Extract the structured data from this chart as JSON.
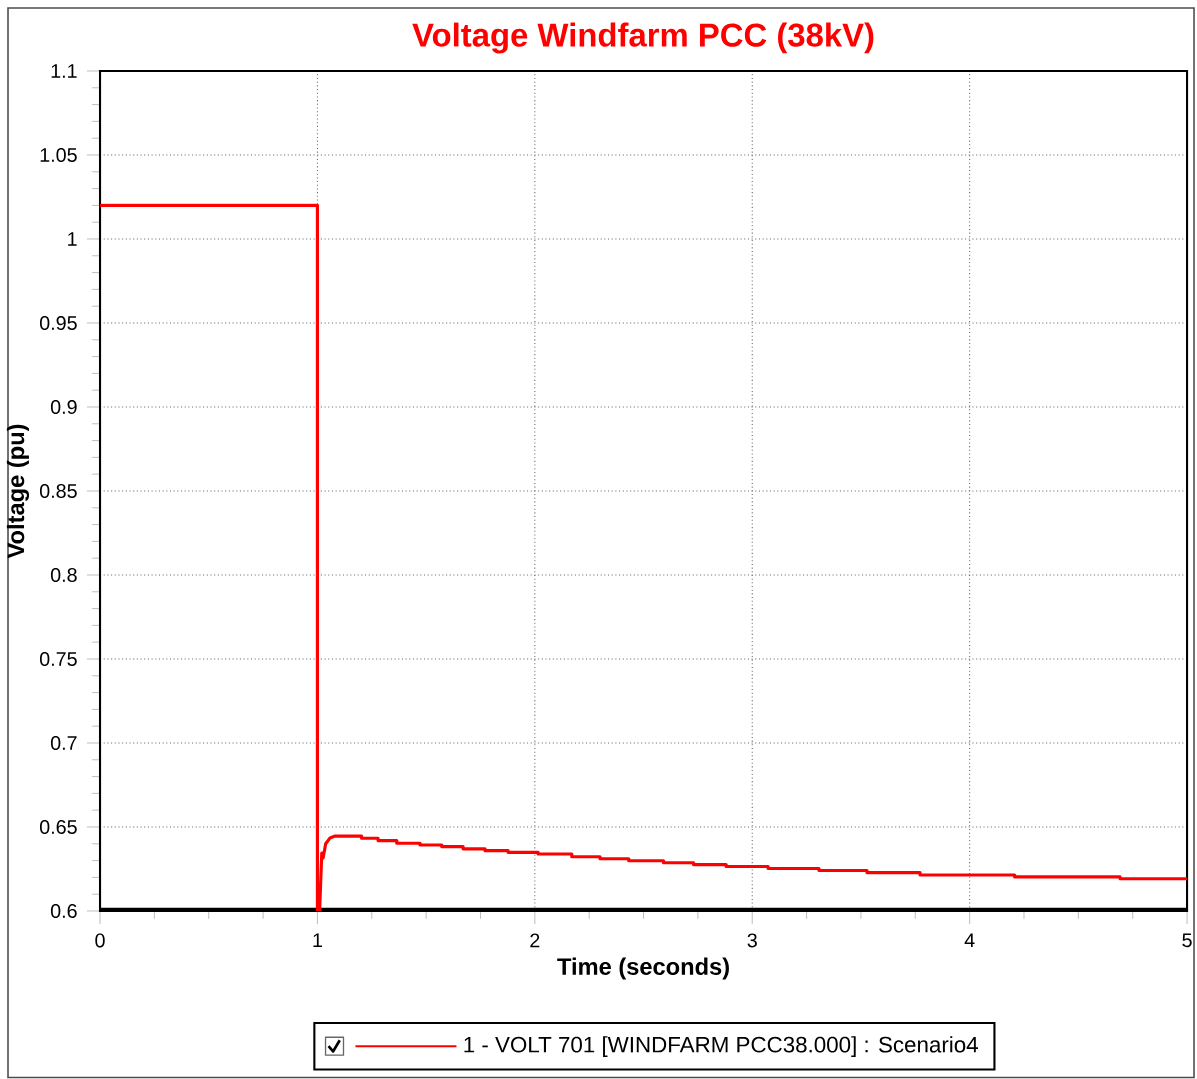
{
  "chart_data": {
    "type": "line",
    "title": "Voltage Windfarm PCC (38kV)",
    "xlabel": "Time (seconds)",
    "ylabel": "Voltage (pu)",
    "xlim": [
      0,
      5
    ],
    "ylim": [
      0.6,
      1.1
    ],
    "xticks": [
      0,
      1,
      2,
      3,
      4,
      5
    ],
    "yticks": [
      0.6,
      0.65,
      0.7,
      0.75,
      0.8,
      0.85,
      0.9,
      0.95,
      1,
      1.05,
      1.1
    ],
    "grid": true,
    "legend": "bottom",
    "marker": "none",
    "line_style": "solid",
    "series": [
      {
        "name": "1 - VOLT    701 [WINDFARM PCC38.000] : Scenario4",
        "color": "#ff0000",
        "x": [
          0,
          1.0,
          1.0,
          1.01,
          1.02,
          1.026,
          1.038,
          1.058,
          1.081,
          1.203,
          1.203,
          1.279,
          1.279,
          1.365,
          1.365,
          1.472,
          1.472,
          1.572,
          1.572,
          1.67,
          1.67,
          1.771,
          1.771,
          1.877,
          1.877,
          2.015,
          2.015,
          2.17,
          2.17,
          2.3,
          2.3,
          2.432,
          2.432,
          2.592,
          2.592,
          2.73,
          2.73,
          2.88,
          2.88,
          3.073,
          3.073,
          3.307,
          3.307,
          3.528,
          3.528,
          3.772,
          3.772,
          4.207,
          4.207,
          4.692,
          4.692,
          5
        ],
        "values": [
          1.02,
          1.02,
          0.6,
          0.6,
          0.6345,
          0.6315,
          0.64,
          0.6435,
          0.6446,
          0.6446,
          0.6433,
          0.6433,
          0.6419,
          0.6419,
          0.6403,
          0.6403,
          0.6393,
          0.6393,
          0.6383,
          0.6383,
          0.637,
          0.637,
          0.6359,
          0.6359,
          0.6349,
          0.6349,
          0.6339,
          0.6339,
          0.6323,
          0.6323,
          0.6311,
          0.6311,
          0.6299,
          0.6299,
          0.6287,
          0.6287,
          0.6276,
          0.6276,
          0.6265,
          0.6265,
          0.6253,
          0.6253,
          0.6241,
          0.6241,
          0.6228,
          0.6228,
          0.6214,
          0.6214,
          0.6203,
          0.6203,
          0.6192,
          0.6192
        ]
      }
    ]
  }
}
